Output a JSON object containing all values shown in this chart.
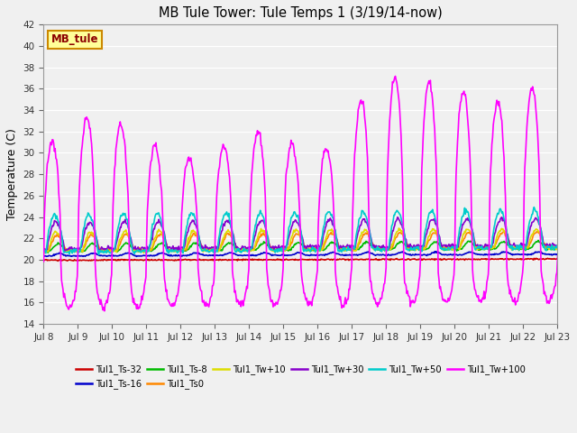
{
  "title": "MB Tule Tower: Tule Temps 1 (3/19/14-now)",
  "ylabel": "Temperature (C)",
  "bg_color": "#f0f0f0",
  "plot_bg_color": "#f0f0f0",
  "ylim": [
    14,
    42
  ],
  "yticks": [
    14,
    16,
    18,
    20,
    22,
    24,
    26,
    28,
    30,
    32,
    34,
    36,
    38,
    40,
    42
  ],
  "xtick_labels": [
    "Jul 8",
    "Jul 9",
    "Jul 10",
    "Jul 11",
    "Jul 12",
    "Jul 13",
    "Jul 14",
    "Jul 15",
    "Jul 16",
    "Jul 17",
    "Jul 18",
    "Jul 19",
    "Jul 20",
    "Jul 21",
    "Jul 22",
    "Jul 23"
  ],
  "series": [
    {
      "label": "Tul1_Ts-32",
      "color": "#cc0000",
      "lw": 1.2,
      "zorder": 5
    },
    {
      "label": "Tul1_Ts-16",
      "color": "#0000cc",
      "lw": 1.2,
      "zorder": 4
    },
    {
      "label": "Tul1_Ts-8",
      "color": "#00bb00",
      "lw": 1.2,
      "zorder": 4
    },
    {
      "label": "Tul1_Ts0",
      "color": "#ff8800",
      "lw": 1.2,
      "zorder": 4
    },
    {
      "label": "Tul1_Tw+10",
      "color": "#dddd00",
      "lw": 1.2,
      "zorder": 4
    },
    {
      "label": "Tul1_Tw+30",
      "color": "#8800cc",
      "lw": 1.2,
      "zorder": 4
    },
    {
      "label": "Tul1_Tw+50",
      "color": "#00cccc",
      "lw": 1.2,
      "zorder": 4
    },
    {
      "label": "Tul1_Tw+100",
      "color": "#ff00ff",
      "lw": 1.2,
      "zorder": 6
    }
  ],
  "annotation_text": "MB_tule",
  "annotation_bg": "#ffff99",
  "annotation_border": "#cc8800",
  "figsize": [
    6.4,
    4.8
  ],
  "dpi": 100
}
